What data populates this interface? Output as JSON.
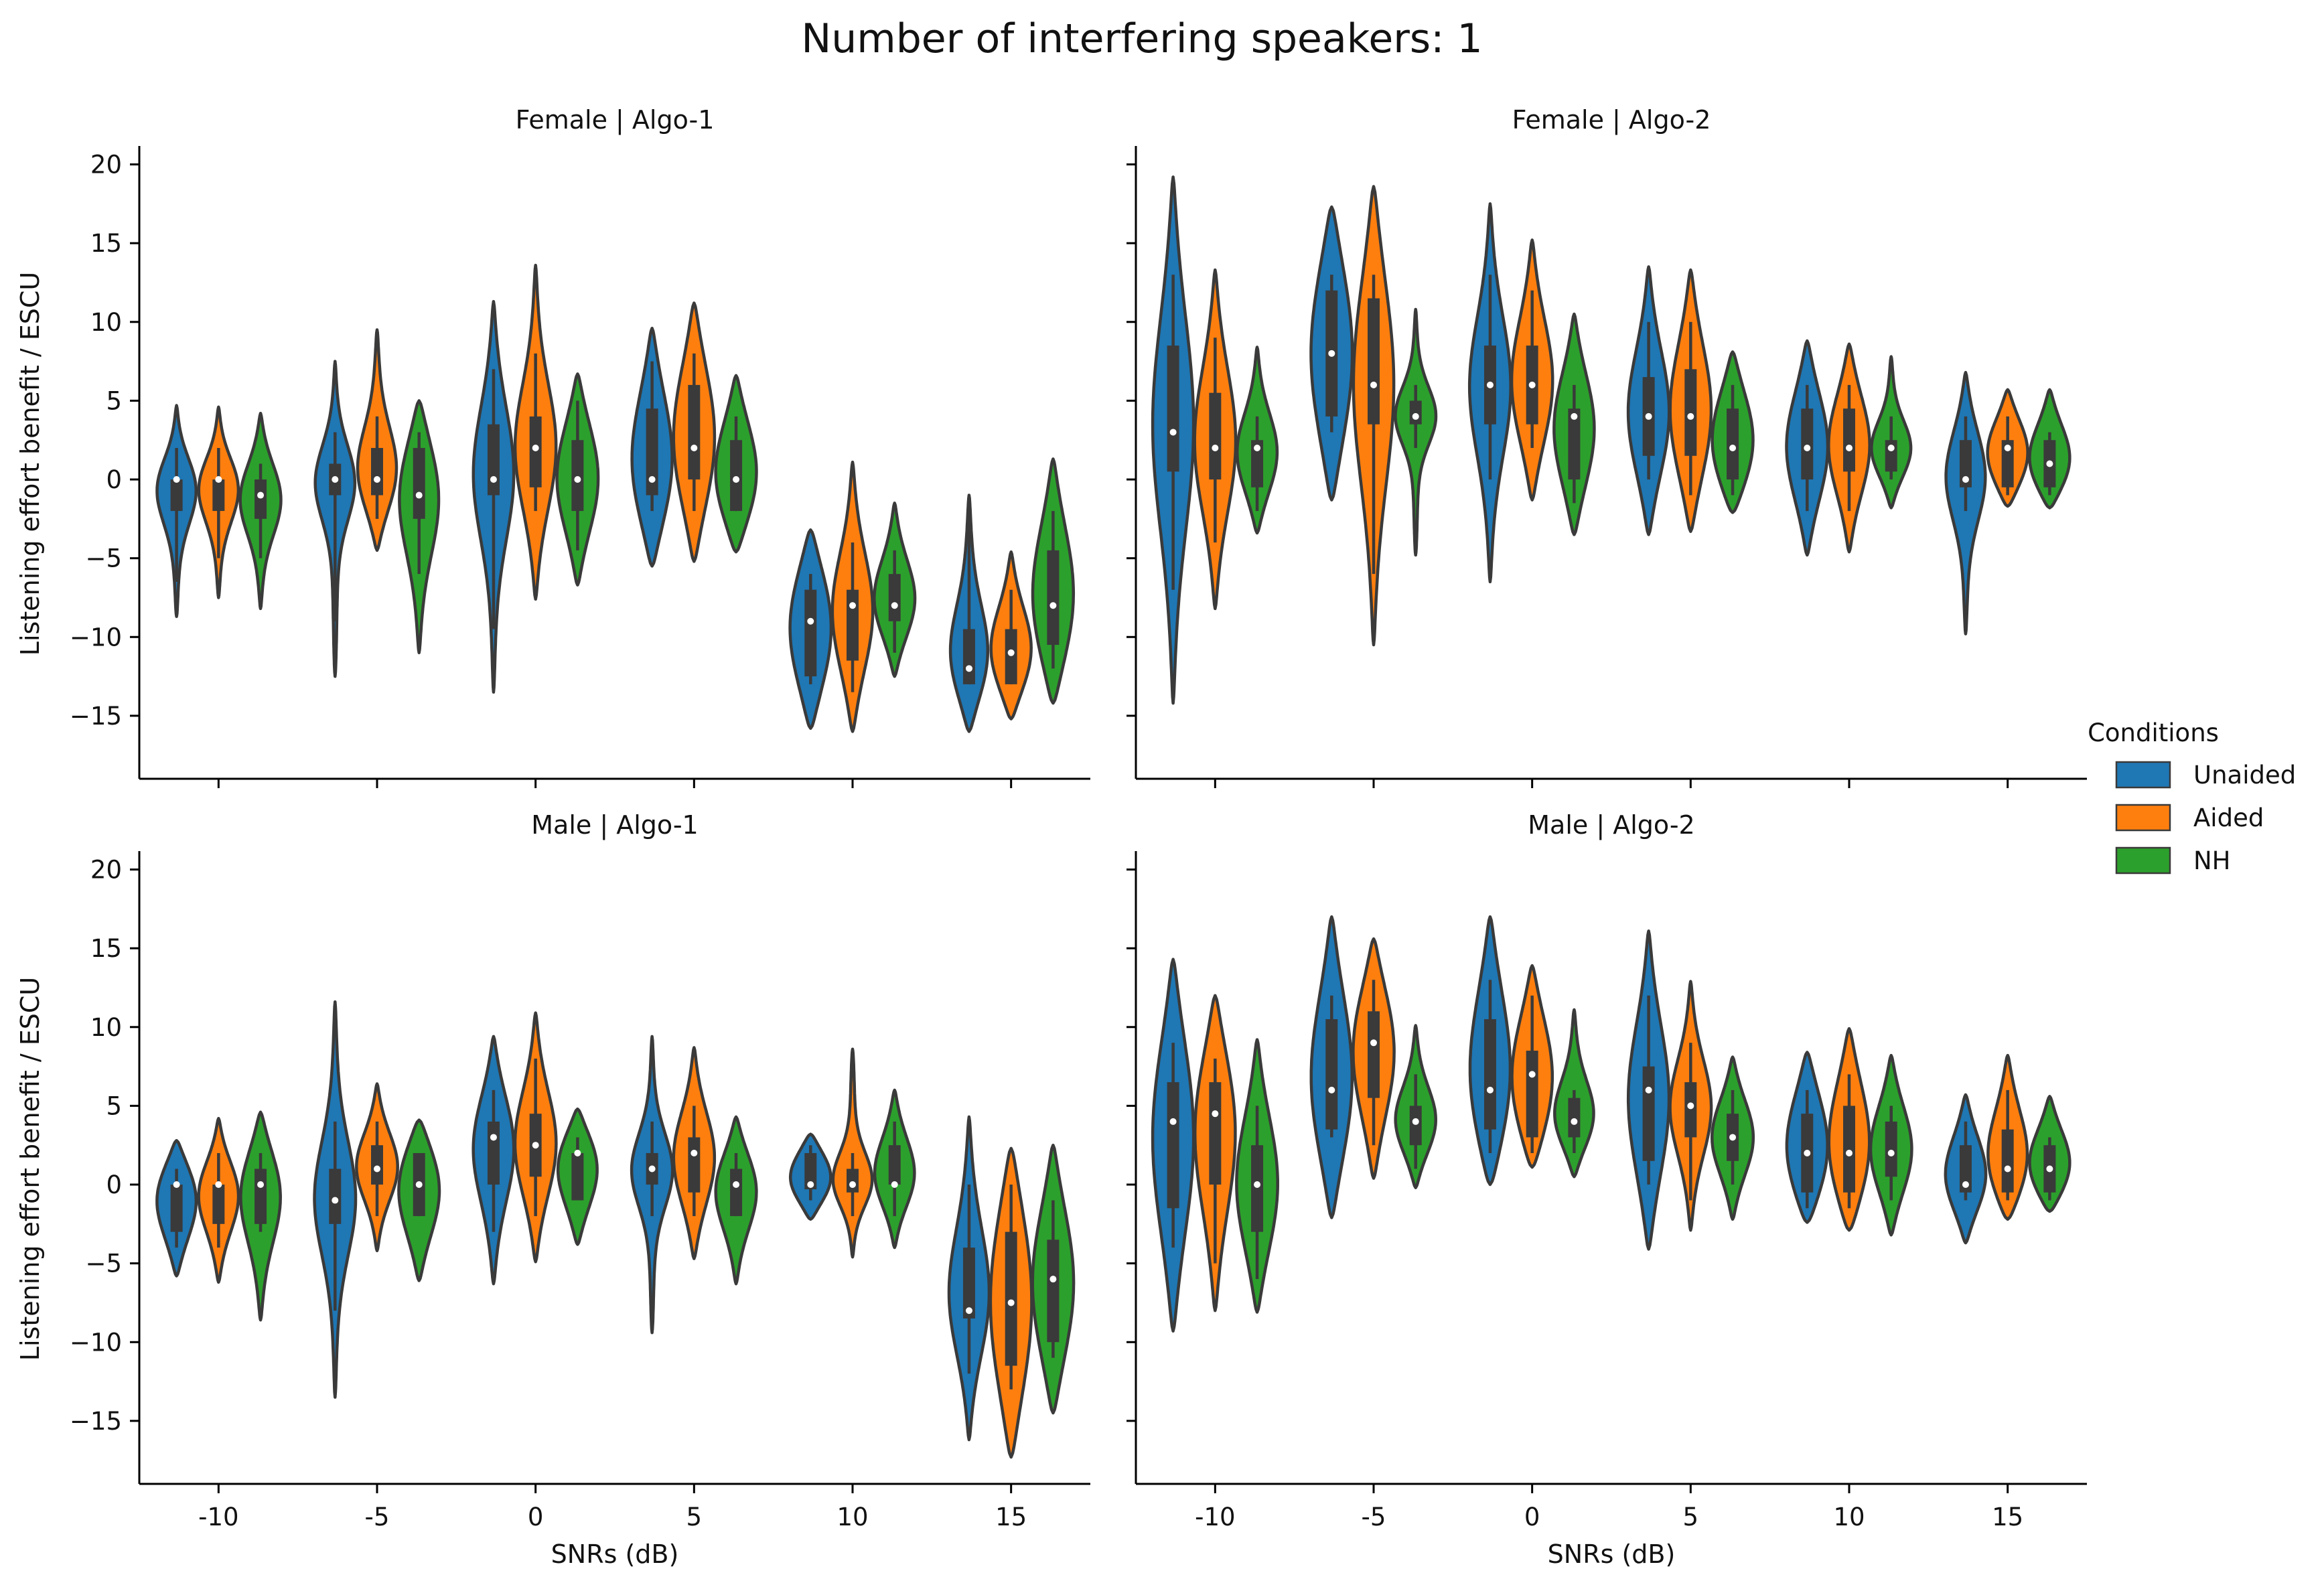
{
  "figure_title": "Number of interfering speakers: 1",
  "legend": {
    "title": "Conditions",
    "entries": [
      {
        "label": "Unaided",
        "color": "#1f77b4"
      },
      {
        "label": "Aided",
        "color": "#ff7f0e"
      },
      {
        "label": "NH",
        "color": "#2ca02c"
      }
    ]
  },
  "colors": {
    "Unaided": "#1f77b4",
    "Aided": "#ff7f0e",
    "NH": "#2ca02c",
    "outline": "#3a3a3a",
    "box": "#3a3a3a",
    "median": "#ffffff"
  },
  "chart_data": [
    {
      "type": "violin",
      "title": "Female | Algo-1",
      "xlabel": "",
      "ylabel": "Listening effort benefit / ESCU",
      "categories": [
        "-10",
        "-5",
        "0",
        "5",
        "10",
        "15"
      ],
      "yticks": [
        -15,
        -10,
        -5,
        0,
        5,
        10,
        15,
        20
      ],
      "ylim": [
        -19,
        21
      ],
      "legend_position": "right",
      "series": [
        {
          "name": "Unaided",
          "stats": [
            {
              "min": -6.5,
              "q1": -2,
              "median": 0,
              "q3": 0,
              "max": 2,
              "vmin": -8.7,
              "vmax": 4.7
            },
            {
              "min": -9,
              "q1": -1,
              "median": 0,
              "q3": 1,
              "max": 3,
              "vmin": -12.5,
              "vmax": 7.5
            },
            {
              "min": -9.5,
              "q1": -1,
              "median": 0,
              "q3": 3.5,
              "max": 7,
              "vmin": -13.5,
              "vmax": 11.3
            },
            {
              "min": -2,
              "q1": -1,
              "median": 0,
              "q3": 4.5,
              "max": 7.5,
              "vmin": -5.5,
              "vmax": 9.6
            },
            {
              "min": -13,
              "q1": -12.5,
              "median": -9,
              "q3": -7,
              "max": -6,
              "vmin": -15.8,
              "vmax": -3.2
            },
            {
              "min": -13,
              "q1": -13,
              "median": -12,
              "q3": -9.5,
              "max": -2,
              "vmin": -16,
              "vmax": -1
            }
          ]
        },
        {
          "name": "Aided",
          "stats": [
            {
              "min": -5,
              "q1": -2,
              "median": 0,
              "q3": 0,
              "max": 2,
              "vmin": -7.5,
              "vmax": 4.6
            },
            {
              "min": -2.5,
              "q1": -1,
              "median": 0,
              "q3": 2,
              "max": 4,
              "vmin": -4.5,
              "vmax": 9.5
            },
            {
              "min": -2,
              "q1": -0.5,
              "median": 2,
              "q3": 4,
              "max": 8,
              "vmin": -7.6,
              "vmax": 13.6
            },
            {
              "min": -2,
              "q1": 0,
              "median": 2,
              "q3": 6,
              "max": 8,
              "vmin": -5.2,
              "vmax": 11.2
            },
            {
              "min": -13.5,
              "q1": -11.5,
              "median": -8,
              "q3": -7,
              "max": -4,
              "vmin": -16,
              "vmax": 1.1
            },
            {
              "min": -13,
              "q1": -13,
              "median": -11,
              "q3": -9.5,
              "max": -7,
              "vmin": -15.2,
              "vmax": -4.6
            }
          ]
        },
        {
          "name": "NH",
          "stats": [
            {
              "min": -5,
              "q1": -2.5,
              "median": -1,
              "q3": 0,
              "max": 1,
              "vmin": -8.2,
              "vmax": 4.2
            },
            {
              "min": -6,
              "q1": -2.5,
              "median": -1,
              "q3": 2,
              "max": 3,
              "vmin": -11,
              "vmax": 5
            },
            {
              "min": -4.5,
              "q1": -2,
              "median": 0,
              "q3": 2.5,
              "max": 5,
              "vmin": -6.7,
              "vmax": 6.7
            },
            {
              "min": -2,
              "q1": -2,
              "median": 0,
              "q3": 2.5,
              "max": 4,
              "vmin": -4.6,
              "vmax": 6.6
            },
            {
              "min": -11,
              "q1": -9,
              "median": -8,
              "q3": -6,
              "max": -4.5,
              "vmin": -12.5,
              "vmax": -1.5
            },
            {
              "min": -12,
              "q1": -10.5,
              "median": -8,
              "q3": -4.5,
              "max": -2,
              "vmin": -14.2,
              "vmax": 1.3
            }
          ]
        }
      ]
    },
    {
      "type": "violin",
      "title": "Female | Algo-2",
      "xlabel": "",
      "ylabel": "",
      "categories": [
        "-10",
        "-5",
        "0",
        "5",
        "10",
        "15"
      ],
      "yticks": [
        -15,
        -10,
        -5,
        0,
        5,
        10,
        15,
        20
      ],
      "ylim": [
        -19,
        21
      ],
      "series": [
        {
          "name": "Unaided",
          "stats": [
            {
              "min": -7,
              "q1": 0.5,
              "median": 3,
              "q3": 8.5,
              "max": 13,
              "vmin": -14.2,
              "vmax": 19.2
            },
            {
              "min": 3,
              "q1": 4,
              "median": 8,
              "q3": 12,
              "max": 13,
              "vmin": -1.3,
              "vmax": 17.3
            },
            {
              "min": 0,
              "q1": 3.5,
              "median": 6,
              "q3": 8.5,
              "max": 13,
              "vmin": -6.5,
              "vmax": 17.5
            },
            {
              "min": 0,
              "q1": 1.5,
              "median": 4,
              "q3": 6.5,
              "max": 10,
              "vmin": -3.5,
              "vmax": 13.5
            },
            {
              "min": -2,
              "q1": 0,
              "median": 2,
              "q3": 4.5,
              "max": 6,
              "vmin": -4.8,
              "vmax": 8.8
            },
            {
              "min": -2,
              "q1": -0.5,
              "median": 0,
              "q3": 2.5,
              "max": 4,
              "vmin": -9.8,
              "vmax": 6.8
            }
          ]
        },
        {
          "name": "Aided",
          "stats": [
            {
              "min": -4,
              "q1": 0,
              "median": 2,
              "q3": 5.5,
              "max": 9,
              "vmin": -8.2,
              "vmax": 13.3
            },
            {
              "min": -6,
              "q1": 3.5,
              "median": 6,
              "q3": 11.5,
              "max": 13,
              "vmin": -10.5,
              "vmax": 18.6
            },
            {
              "min": 2,
              "q1": 3.5,
              "median": 6,
              "q3": 8.5,
              "max": 12,
              "vmin": -1.3,
              "vmax": 15.2
            },
            {
              "min": -1,
              "q1": 1.5,
              "median": 4,
              "q3": 7,
              "max": 10,
              "vmin": -3.3,
              "vmax": 13.3
            },
            {
              "min": -2,
              "q1": 0.5,
              "median": 2,
              "q3": 4.5,
              "max": 6,
              "vmin": -4.6,
              "vmax": 8.6
            },
            {
              "min": -1,
              "q1": -0.5,
              "median": 2,
              "q3": 2.5,
              "max": 4,
              "vmin": -1.7,
              "vmax": 5.7
            }
          ]
        },
        {
          "name": "NH",
          "stats": [
            {
              "min": -2,
              "q1": -0.5,
              "median": 2,
              "q3": 2.5,
              "max": 4,
              "vmin": -3.4,
              "vmax": 8.4
            },
            {
              "min": 2,
              "q1": 3.5,
              "median": 4,
              "q3": 5,
              "max": 6,
              "vmin": -4.8,
              "vmax": 10.8
            },
            {
              "min": -1.5,
              "q1": 0,
              "median": 4,
              "q3": 4.5,
              "max": 6,
              "vmin": -3.5,
              "vmax": 10.5
            },
            {
              "min": -1,
              "q1": 0,
              "median": 2,
              "q3": 4.5,
              "max": 6,
              "vmin": -2.1,
              "vmax": 8.1
            },
            {
              "min": 0,
              "q1": 0.5,
              "median": 2,
              "q3": 2.5,
              "max": 4,
              "vmin": -1.8,
              "vmax": 7.8
            },
            {
              "min": -1,
              "q1": -0.5,
              "median": 1,
              "q3": 2.5,
              "max": 3,
              "vmin": -1.8,
              "vmax": 5.7
            }
          ]
        }
      ]
    },
    {
      "type": "violin",
      "title": "Male | Algo-1",
      "xlabel": "SNRs (dB)",
      "ylabel": "Listening effort benefit / ESCU",
      "categories": [
        "-10",
        "-5",
        "0",
        "5",
        "10",
        "15"
      ],
      "yticks": [
        -15,
        -10,
        -5,
        0,
        5,
        10,
        15,
        20
      ],
      "ylim": [
        -19,
        21
      ],
      "series": [
        {
          "name": "Unaided",
          "stats": [
            {
              "min": -4,
              "q1": -3,
              "median": 0,
              "q3": 0,
              "max": 1,
              "vmin": -5.8,
              "vmax": 2.8
            },
            {
              "min": -8,
              "q1": -2.5,
              "median": -1,
              "q3": 1,
              "max": 4,
              "vmin": -13.5,
              "vmax": 11.6
            },
            {
              "min": -3,
              "q1": 0,
              "median": 3,
              "q3": 4,
              "max": 6,
              "vmin": -6.3,
              "vmax": 9.4
            },
            {
              "min": -2,
              "q1": 0,
              "median": 1,
              "q3": 2,
              "max": 4,
              "vmin": -9.4,
              "vmax": 9.4
            },
            {
              "min": -1,
              "q1": -0.3,
              "median": 0,
              "q3": 2,
              "max": 2.5,
              "vmin": -2.2,
              "vmax": 3.2
            },
            {
              "min": -12,
              "q1": -8.5,
              "median": -8,
              "q3": -4,
              "max": 0,
              "vmin": -16.2,
              "vmax": 4.3
            }
          ]
        },
        {
          "name": "Aided",
          "stats": [
            {
              "min": -4,
              "q1": -2.5,
              "median": 0,
              "q3": 0,
              "max": 2,
              "vmin": -6.2,
              "vmax": 4.2
            },
            {
              "min": -2,
              "q1": 0,
              "median": 1,
              "q3": 2.5,
              "max": 4,
              "vmin": -4.2,
              "vmax": 6.4
            },
            {
              "min": -2,
              "q1": 0.5,
              "median": 2.5,
              "q3": 4.5,
              "max": 8,
              "vmin": -4.9,
              "vmax": 10.9
            },
            {
              "min": -2,
              "q1": -0.5,
              "median": 2,
              "q3": 3,
              "max": 5,
              "vmin": -4.7,
              "vmax": 8.7
            },
            {
              "min": -2,
              "q1": -0.5,
              "median": 0,
              "q3": 1,
              "max": 2,
              "vmin": -4.6,
              "vmax": 8.6
            },
            {
              "min": -13,
              "q1": -11.5,
              "median": -7.5,
              "q3": -3,
              "max": 0,
              "vmin": -17.3,
              "vmax": 2.3
            }
          ]
        },
        {
          "name": "NH",
          "stats": [
            {
              "min": -3,
              "q1": -2.5,
              "median": 0,
              "q3": 1,
              "max": 2,
              "vmin": -8.6,
              "vmax": 4.6
            },
            {
              "min": -2,
              "q1": -2,
              "median": 0,
              "q3": 2,
              "max": 2,
              "vmin": -6.1,
              "vmax": 4.1
            },
            {
              "min": -1,
              "q1": -1,
              "median": 2,
              "q3": 2,
              "max": 3,
              "vmin": -3.8,
              "vmax": 4.8
            },
            {
              "min": -2,
              "q1": -2,
              "median": 0,
              "q3": 1,
              "max": 2,
              "vmin": -6.3,
              "vmax": 4.3
            },
            {
              "min": -2,
              "q1": 0,
              "median": 0,
              "q3": 2.5,
              "max": 4,
              "vmin": -4,
              "vmax": 6
            },
            {
              "min": -11,
              "q1": -10,
              "median": -6,
              "q3": -3.5,
              "max": -1,
              "vmin": -14.5,
              "vmax": 2.5
            }
          ]
        }
      ]
    },
    {
      "type": "violin",
      "title": "Male | Algo-2",
      "xlabel": "SNRs (dB)",
      "ylabel": "",
      "categories": [
        "-10",
        "-5",
        "0",
        "5",
        "10",
        "15"
      ],
      "yticks": [
        -15,
        -10,
        -5,
        0,
        5,
        10,
        15,
        20
      ],
      "ylim": [
        -19,
        21
      ],
      "series": [
        {
          "name": "Unaided",
          "stats": [
            {
              "min": -4,
              "q1": -1.5,
              "median": 4,
              "q3": 6.5,
              "max": 9,
              "vmin": -9.3,
              "vmax": 14.3
            },
            {
              "min": 3,
              "q1": 3.5,
              "median": 6,
              "q3": 10.5,
              "max": 12,
              "vmin": -2.1,
              "vmax": 17
            },
            {
              "min": 2,
              "q1": 3.5,
              "median": 6,
              "q3": 10.5,
              "max": 13,
              "vmin": 0,
              "vmax": 17
            },
            {
              "min": 0,
              "q1": 1.5,
              "median": 6,
              "q3": 7.5,
              "max": 12,
              "vmin": -4.1,
              "vmax": 16.1
            },
            {
              "min": -1.5,
              "q1": -0.5,
              "median": 2,
              "q3": 4.5,
              "max": 6,
              "vmin": -2.4,
              "vmax": 8.4
            },
            {
              "min": -1,
              "q1": -0.5,
              "median": 0,
              "q3": 2.5,
              "max": 4,
              "vmin": -3.7,
              "vmax": 5.7
            }
          ]
        },
        {
          "name": "Aided",
          "stats": [
            {
              "min": -5,
              "q1": 0,
              "median": 4.5,
              "q3": 6.5,
              "max": 8,
              "vmin": -8,
              "vmax": 12
            },
            {
              "min": 2.5,
              "q1": 5.5,
              "median": 9,
              "q3": 11,
              "max": 13,
              "vmin": 0.4,
              "vmax": 15.6
            },
            {
              "min": 2,
              "q1": 3,
              "median": 7,
              "q3": 8.5,
              "max": 12,
              "vmin": 1.1,
              "vmax": 13.9
            },
            {
              "min": -1,
              "q1": 3,
              "median": 5,
              "q3": 6.5,
              "max": 9,
              "vmin": -2.9,
              "vmax": 12.9
            },
            {
              "min": -1.5,
              "q1": -0.5,
              "median": 2,
              "q3": 5,
              "max": 7,
              "vmin": -2.9,
              "vmax": 9.9
            },
            {
              "min": -1,
              "q1": -0.5,
              "median": 1,
              "q3": 3.5,
              "max": 6,
              "vmin": -2.2,
              "vmax": 8.2
            }
          ]
        },
        {
          "name": "NH",
          "stats": [
            {
              "min": -6,
              "q1": -3,
              "median": 0,
              "q3": 2.5,
              "max": 5,
              "vmin": -8.1,
              "vmax": 9.2
            },
            {
              "min": 1,
              "q1": 2.5,
              "median": 4,
              "q3": 5,
              "max": 7,
              "vmin": -0.2,
              "vmax": 10.1
            },
            {
              "min": 2,
              "q1": 3,
              "median": 4,
              "q3": 5.5,
              "max": 6,
              "vmin": 0.5,
              "vmax": 11.1
            },
            {
              "min": 0,
              "q1": 1.5,
              "median": 3,
              "q3": 4.5,
              "max": 6,
              "vmin": -2.2,
              "vmax": 8.1
            },
            {
              "min": -1,
              "q1": 0.5,
              "median": 2,
              "q3": 4,
              "max": 5,
              "vmin": -3.2,
              "vmax": 8.2
            },
            {
              "min": -1,
              "q1": -0.5,
              "median": 1,
              "q3": 2.5,
              "max": 3,
              "vmin": -1.7,
              "vmax": 5.6
            }
          ]
        }
      ]
    }
  ]
}
